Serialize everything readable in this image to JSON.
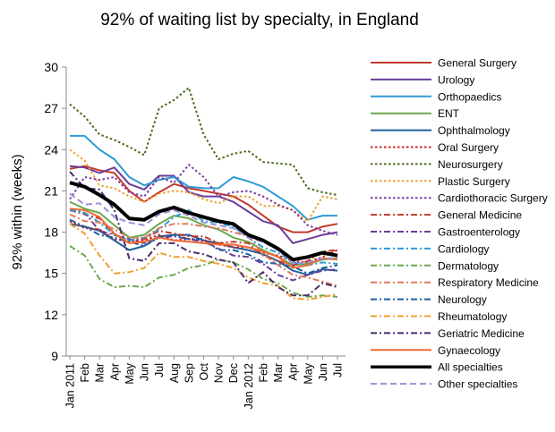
{
  "chart_data": {
    "type": "line",
    "title": "92% of waiting list by specialty, in England",
    "xlabel": "",
    "ylabel": "92% within (weeks)",
    "ylim": [
      9,
      30
    ],
    "yticks": [
      9,
      12,
      15,
      18,
      21,
      24,
      27,
      30
    ],
    "grid": false,
    "legend_position": "right",
    "x": [
      "Jan 2011",
      "Feb",
      "Mar",
      "Apr",
      "May",
      "Jun",
      "Jul",
      "Aug",
      "Sep",
      "Oct",
      "Nov",
      "Dec",
      "Jan 2012",
      "Feb",
      "Mar",
      "Apr",
      "May",
      "Jun",
      "Jul"
    ],
    "series": [
      {
        "name": "General Surgery",
        "color": "#c0392b",
        "dash": "solid",
        "width": 2,
        "values": [
          22.6,
          22.8,
          22.5,
          22.3,
          21.0,
          20.2,
          20.9,
          21.5,
          21.2,
          21.0,
          20.8,
          20.6,
          20.0,
          19.2,
          18.4,
          18.0,
          18.0,
          18.4,
          18.6
        ]
      },
      {
        "name": "Urology",
        "color": "#6a3d9a",
        "dash": "solid",
        "width": 2,
        "values": [
          22.8,
          22.7,
          22.3,
          22.7,
          21.5,
          21.1,
          22.1,
          22.1,
          20.9,
          20.6,
          20.6,
          20.2,
          19.5,
          18.8,
          18.5,
          17.2,
          17.5,
          17.8,
          18.0
        ]
      },
      {
        "name": "Orthopaedics",
        "color": "#2e9bd6",
        "dash": "solid",
        "width": 2,
        "values": [
          25.0,
          25.0,
          24.0,
          23.3,
          22.0,
          21.4,
          21.8,
          22.0,
          21.3,
          21.2,
          21.2,
          22.0,
          21.7,
          21.3,
          20.6,
          19.9,
          18.9,
          19.2,
          19.2
        ]
      },
      {
        "name": "ENT",
        "color": "#6aa84f",
        "dash": "solid",
        "width": 2,
        "values": [
          20.2,
          19.7,
          19.4,
          18.5,
          17.6,
          17.8,
          18.6,
          19.2,
          19.0,
          18.5,
          18.2,
          17.6,
          17.3,
          16.7,
          16.2,
          15.6,
          15.7,
          16.0,
          16.1
        ]
      },
      {
        "name": "Ophthalmology",
        "color": "#1f5f9e",
        "dash": "solid",
        "width": 2,
        "values": [
          18.6,
          18.4,
          18.1,
          17.4,
          16.7,
          17.0,
          17.7,
          17.8,
          17.8,
          17.4,
          17.2,
          16.9,
          16.7,
          16.4,
          15.9,
          15.2,
          14.9,
          15.3,
          15.2
        ]
      },
      {
        "name": "Oral Surgery",
        "color": "#cc2222",
        "dash": "dot",
        "width": 2,
        "values": [
          18.8,
          18.3,
          18.2,
          17.5,
          17.3,
          17.4,
          17.8,
          17.4,
          17.5,
          17.4,
          17.1,
          16.9,
          16.9,
          16.5,
          16.3,
          15.9,
          15.8,
          16.2,
          16.7
        ]
      },
      {
        "name": "Neurosurgery",
        "color": "#4a6b1e",
        "dash": "dot",
        "width": 2,
        "values": [
          27.3,
          26.4,
          25.1,
          24.7,
          24.2,
          23.6,
          27.0,
          27.6,
          28.5,
          25.1,
          23.3,
          23.7,
          23.9,
          23.1,
          23.0,
          22.9,
          21.2,
          20.9,
          20.7
        ]
      },
      {
        "name": "Plastic Surgery",
        "color": "#f0a030",
        "dash": "dot",
        "width": 2,
        "values": [
          24.0,
          23.2,
          21.4,
          21.2,
          20.6,
          20.2,
          20.8,
          21.0,
          20.9,
          20.4,
          20.1,
          20.6,
          20.6,
          19.9,
          19.9,
          19.6,
          18.8,
          20.6,
          20.4
        ]
      },
      {
        "name": "Cardiothoracic Surgery",
        "color": "#7b3fa0",
        "dash": "dot",
        "width": 2,
        "values": [
          20.4,
          22.0,
          21.8,
          22.0,
          20.9,
          20.6,
          22.0,
          21.6,
          22.9,
          22.0,
          20.6,
          20.9,
          21.0,
          20.6,
          20.0,
          19.6,
          18.5,
          18.1,
          17.8
        ]
      },
      {
        "name": "General Medicine",
        "color": "#c0392b",
        "dash": "dashdot",
        "width": 2,
        "values": [
          19.6,
          19.3,
          19.0,
          17.8,
          17.4,
          17.5,
          18.1,
          17.9,
          17.7,
          17.7,
          17.2,
          17.3,
          17.2,
          16.3,
          15.9,
          15.6,
          15.9,
          16.6,
          16.7
        ]
      },
      {
        "name": "Gastroenterology",
        "color": "#6a3d9a",
        "dash": "dashdot",
        "width": 2,
        "values": [
          19.7,
          19.4,
          18.1,
          17.8,
          17.5,
          17.2,
          17.6,
          17.7,
          17.5,
          17.3,
          16.8,
          16.3,
          16.2,
          15.7,
          14.9,
          14.5,
          14.9,
          15.2,
          15.3
        ]
      },
      {
        "name": "Cardiology",
        "color": "#2e9bd6",
        "dash": "dashdot",
        "width": 2,
        "values": [
          19.6,
          19.4,
          18.7,
          17.8,
          17.4,
          17.6,
          18.2,
          19.1,
          19.6,
          18.8,
          18.7,
          18.4,
          17.6,
          16.9,
          16.5,
          15.8,
          15.6,
          15.8,
          15.7
        ]
      },
      {
        "name": "Dermatology",
        "color": "#6aa84f",
        "dash": "dashdot",
        "width": 2,
        "values": [
          17.0,
          16.3,
          14.6,
          14.0,
          14.1,
          14.0,
          14.7,
          14.9,
          15.4,
          15.6,
          16.0,
          15.8,
          15.3,
          14.6,
          14.3,
          13.6,
          13.3,
          13.4,
          13.3
        ]
      },
      {
        "name": "Respiratory Medicine",
        "color": "#e07a5f",
        "dash": "dashdot",
        "width": 2,
        "values": [
          19.3,
          18.8,
          18.7,
          18.2,
          17.6,
          17.6,
          18.3,
          18.6,
          18.6,
          18.4,
          18.3,
          18.0,
          17.7,
          16.4,
          15.6,
          14.9,
          14.7,
          14.4,
          14.1
        ]
      },
      {
        "name": "Neurology",
        "color": "#1f5f9e",
        "dash": "dashdot",
        "width": 2,
        "values": [
          18.9,
          18.4,
          17.8,
          17.6,
          17.3,
          17.0,
          17.6,
          17.8,
          17.5,
          17.5,
          16.7,
          16.7,
          16.4,
          15.8,
          15.7,
          15.5,
          15.0,
          15.4,
          15.6
        ]
      },
      {
        "name": "Rheumatology",
        "color": "#f0a030",
        "dash": "dashdot",
        "width": 2,
        "values": [
          18.6,
          17.9,
          16.3,
          15.0,
          15.1,
          15.4,
          16.5,
          16.2,
          16.2,
          15.9,
          15.7,
          15.4,
          14.7,
          14.3,
          14.1,
          13.2,
          13.1,
          13.3,
          13.5
        ]
      },
      {
        "name": "Geriatric Medicine",
        "color": "#4b2c6e",
        "dash": "dashdot",
        "width": 2,
        "values": [
          22.4,
          21.2,
          21.1,
          19.6,
          16.1,
          15.9,
          17.2,
          17.2,
          16.6,
          16.4,
          16.0,
          15.8,
          14.3,
          15.1,
          14.0,
          13.4,
          13.4,
          14.3,
          14.0
        ]
      },
      {
        "name": "Gynaecology",
        "color": "#f26a30",
        "dash": "solid",
        "width": 2,
        "values": [
          19.7,
          19.6,
          19.1,
          17.9,
          17.2,
          17.3,
          17.6,
          17.4,
          17.3,
          17.2,
          17.1,
          17.1,
          16.9,
          16.6,
          16.2,
          15.4,
          15.6,
          16.1,
          16.0
        ]
      },
      {
        "name": "All specialties",
        "color": "#000000",
        "dash": "solid",
        "width": 4,
        "values": [
          21.6,
          21.3,
          20.7,
          20.0,
          19.0,
          18.9,
          19.5,
          19.8,
          19.4,
          19.1,
          18.8,
          18.6,
          17.8,
          17.4,
          16.8,
          16.0,
          16.2,
          16.5,
          16.3
        ]
      },
      {
        "name": "Other specialties",
        "color": "#9b8fd6",
        "dash": "dash",
        "width": 2,
        "values": [
          20.8,
          20.0,
          20.1,
          19.1,
          18.7,
          18.5,
          19.3,
          19.6,
          19.2,
          18.7,
          18.5,
          18.3,
          17.6,
          17.3,
          16.7,
          15.7,
          15.8,
          16.1,
          16.1
        ]
      }
    ]
  }
}
